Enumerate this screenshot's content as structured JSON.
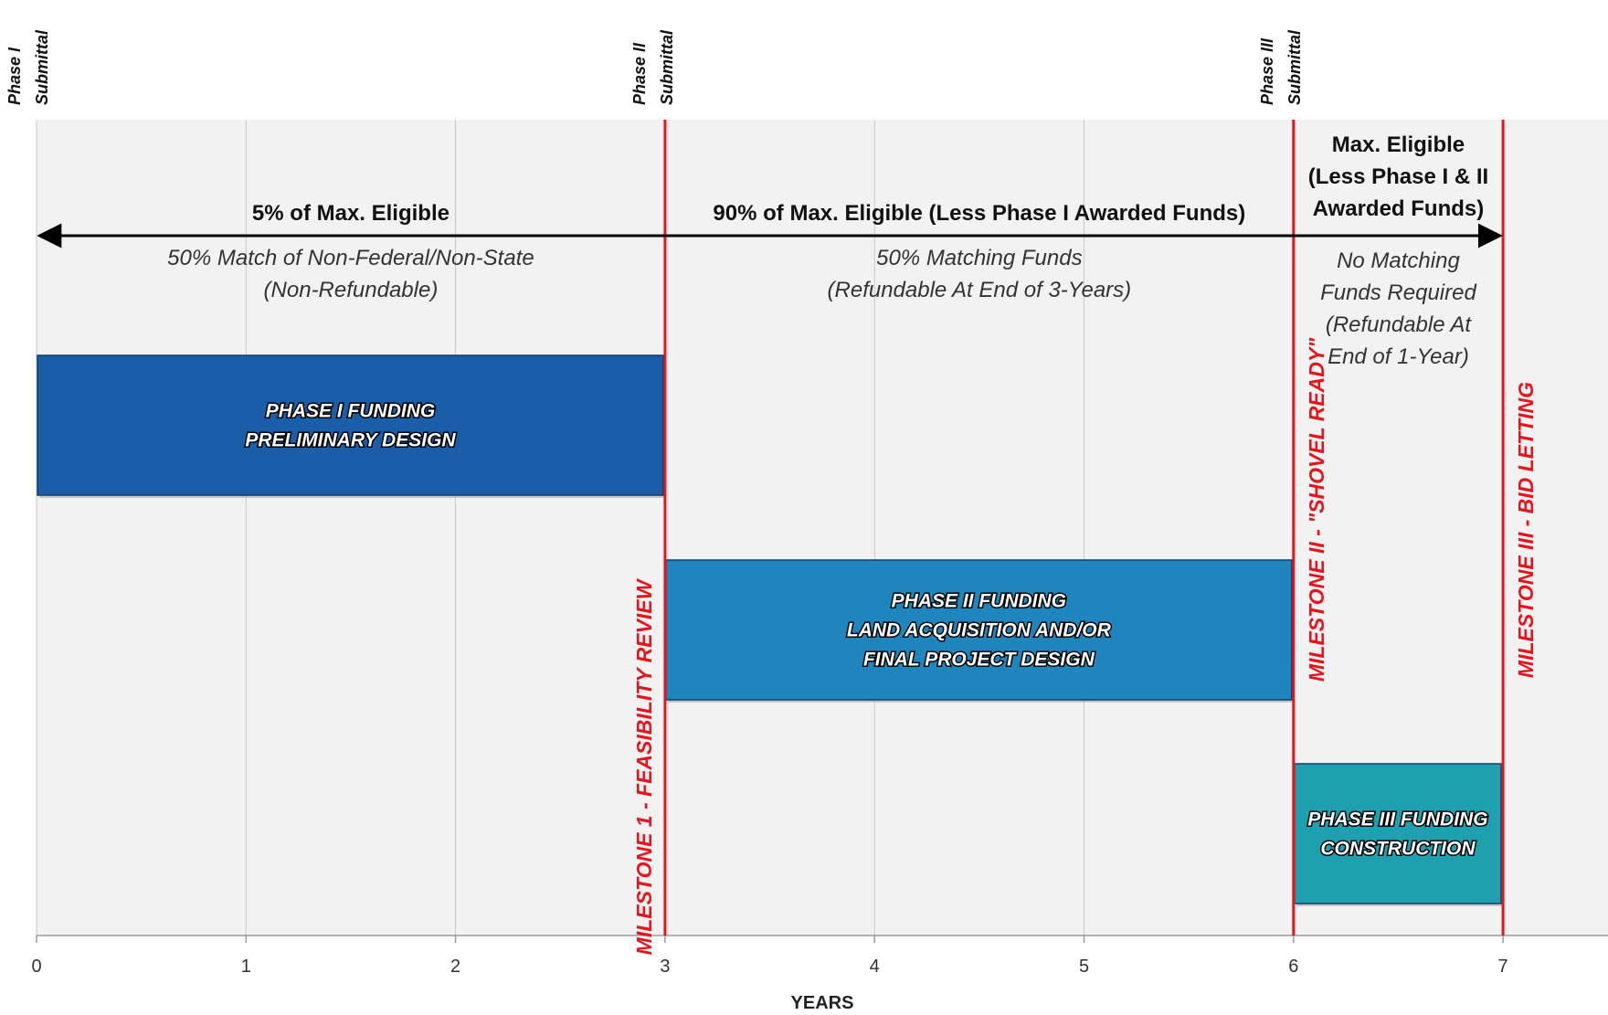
{
  "chart_data": {
    "type": "gantt",
    "xlabel": "YEARS",
    "xlim": [
      0,
      7.5
    ],
    "x_ticks": [
      0,
      1,
      2,
      3,
      4,
      5,
      6,
      7
    ],
    "grid": true,
    "submittals": [
      {
        "x": 0,
        "lines": [
          "Phase I",
          "Submittal"
        ]
      },
      {
        "x": 3,
        "lines": [
          "Phase II",
          "Submittal"
        ]
      },
      {
        "x": 6,
        "lines": [
          "Phase III",
          "Submittal"
        ]
      }
    ],
    "milestones": [
      {
        "x": 3,
        "label": "MILESTONE 1 - FEASIBILITY REVIEW"
      },
      {
        "x": 6,
        "label": "MILESTONE II - \"SHOVEL READY\""
      },
      {
        "x": 7,
        "label": "MILESTONE III - BID LETTING"
      }
    ],
    "periods": [
      {
        "start": 0,
        "end": 3,
        "header": [
          "5% of Max. Eligible"
        ],
        "notes": [
          "50% Match of Non-Federal/Non-State",
          "(Non-Refundable)"
        ]
      },
      {
        "start": 3,
        "end": 6,
        "header": [
          "90% of Max. Eligible (Less Phase I Awarded Funds)"
        ],
        "notes": [
          "50% Matching Funds",
          "(Refundable At End of 3-Years)"
        ]
      },
      {
        "start": 6,
        "end": 7,
        "header": [
          "Max. Eligible",
          "(Less Phase I & II",
          "Awarded Funds)"
        ],
        "notes": [
          "No Matching",
          "Funds Required",
          "(Refundable At",
          "End of 1-Year)"
        ]
      }
    ],
    "bars": [
      {
        "start": 0,
        "end": 3,
        "lines": [
          "PHASE I FUNDING",
          "PRELIMINARY DESIGN"
        ],
        "color": "#1a5ea8"
      },
      {
        "start": 3,
        "end": 6,
        "lines": [
          "PHASE II FUNDING",
          "LAND ACQUISITION AND/OR",
          "FINAL PROJECT DESIGN"
        ],
        "color": "#1f86bd"
      },
      {
        "start": 6,
        "end": 7,
        "lines": [
          "PHASE III FUNDING",
          "CONSTRUCTION"
        ],
        "color": "#1ea0b0"
      }
    ],
    "colors": {
      "milestone": "#e8141c",
      "arrow": "#000000",
      "plot_bg": "#f2f2f2",
      "grid": "#c8c8c8"
    }
  }
}
